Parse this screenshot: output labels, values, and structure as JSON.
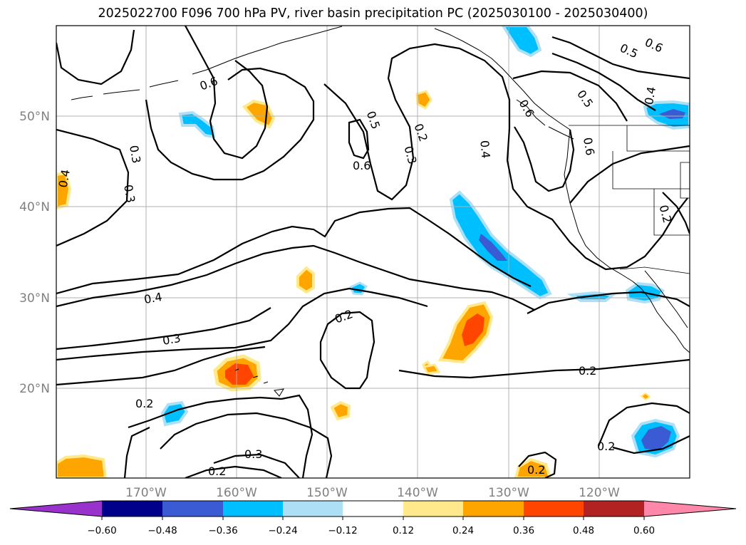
{
  "title": "2025022700 F096 700 hPa PV, river basin precipitation PC (2025030100 - 2025030400)",
  "axes": {
    "lat_labels": [
      "50°N",
      "40°N",
      "30°N",
      "20°N"
    ],
    "lon_labels": [
      "170°W",
      "160°W",
      "150°W",
      "140°W",
      "130°W",
      "120°W"
    ]
  },
  "contour_labels": [
    "0.6",
    "0.6",
    "0.5",
    "0.6",
    "0.5",
    "0.4",
    "0.3",
    "0.3",
    "0.4",
    "0.6",
    "0.5",
    "0.2",
    "0.3",
    "0.4",
    "0.6",
    "0.2",
    "0.4",
    "0.3",
    "0.2",
    "0.2",
    "0.2",
    "0.3",
    "0.2",
    "0.2",
    "0.2"
  ],
  "colorbar": {
    "ticks": [
      "−0.60",
      "−0.48",
      "−0.36",
      "−0.24",
      "−0.12",
      "0.12",
      "0.24",
      "0.36",
      "0.48",
      "0.60"
    ],
    "colors": {
      "lt_neg_060": "#9932CC",
      "neg_060_048": "#00008B",
      "neg_048_036": "#3A5BD4",
      "neg_036_024": "#00BFFF",
      "neg_024_012": "#ADE0F7",
      "neg_012_012": "#FFFFFF",
      "pos_012_024": "#FFE98A",
      "pos_024_036": "#FFA500",
      "pos_036_048": "#FF4500",
      "pos_048_060": "#B22222",
      "gt_060": "#FF88AA"
    }
  },
  "anomaly_colors": {
    "pos_light": "#FFE98A",
    "pos_orange": "#FFA500",
    "pos_red": "#FF4500",
    "neg_light": "#ADE0F7",
    "neg_cyan": "#00BFFF",
    "neg_blue": "#3A5BD4"
  }
}
